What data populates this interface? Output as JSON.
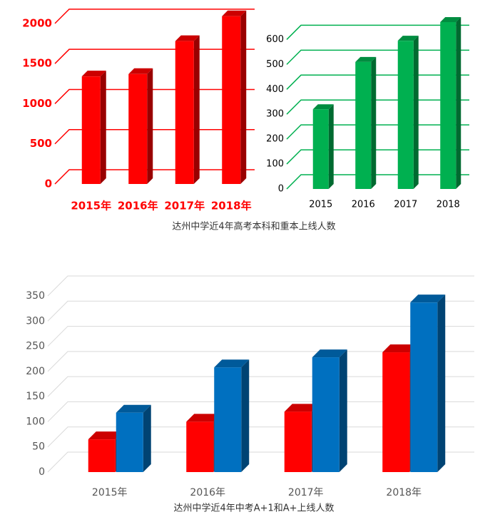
{
  "captions": [
    "达州中学近4年高考本科和重本上线人数",
    "达州中学近4年中考A+1和A+上线人数"
  ],
  "chart_data": [
    {
      "type": "bar",
      "categories": [
        "2015年",
        "2016年",
        "2017年",
        "2018年"
      ],
      "values": [
        1340,
        1370,
        1780,
        2090
      ],
      "color": "#ff0000",
      "ylim": [
        0,
        2150
      ],
      "yticks": [
        0,
        500,
        1000,
        1500,
        2000
      ],
      "grid": true
    },
    {
      "type": "bar",
      "categories": [
        "2015",
        "2016",
        "2017",
        "2018"
      ],
      "values": [
        320,
        510,
        595,
        670
      ],
      "color": "#00b050",
      "ylim": [
        0,
        690
      ],
      "yticks": [
        0,
        100,
        200,
        300,
        400,
        500,
        600
      ],
      "grid": true
    },
    {
      "type": "bar",
      "categories": [
        "2015年",
        "2016年",
        "2017年",
        "2018年"
      ],
      "series": [
        {
          "color": "#ff0000",
          "values": [
            65,
            100,
            120,
            238
          ]
        },
        {
          "color": "#0070c0",
          "values": [
            118,
            208,
            228,
            337
          ]
        }
      ],
      "ylim": [
        0,
        350
      ],
      "yticks": [
        0,
        50,
        100,
        150,
        200,
        250,
        300,
        350
      ],
      "grid": true
    }
  ]
}
